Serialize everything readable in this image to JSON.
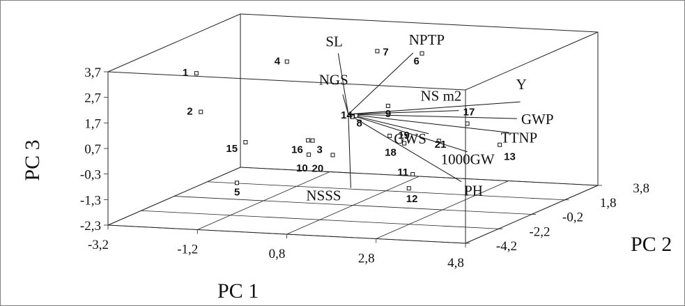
{
  "chart_data": {
    "type": "scatter",
    "subtype": "3d-biplot",
    "xlabel": "PC 1",
    "ylabel": "PC 2",
    "zlabel": "PC 3",
    "x_ticks": [
      "-3,2",
      "-1,2",
      "0,8",
      "2,8",
      "4,8"
    ],
    "y_ticks": [
      "-4,2",
      "-2,2",
      "-0,2",
      "1,8",
      "3,8"
    ],
    "z_ticks": [
      "-2,3",
      "-1,3",
      "-0,3",
      "0,7",
      "1,7",
      "2,7",
      "3,7"
    ],
    "xlim": [
      -3.2,
      4.8
    ],
    "ylim": [
      -4.2,
      3.8
    ],
    "zlim": [
      -2.3,
      3.7
    ],
    "grid": "floor",
    "points": [
      {
        "label": "1",
        "x": -3.0,
        "y": 0.6,
        "z": 2.3
      },
      {
        "label": "2",
        "x": -2.9,
        "y": 0.6,
        "z": 0.8
      },
      {
        "label": "3",
        "x": -0.4,
        "y": 0.6,
        "z": -0.1
      },
      {
        "label": "4",
        "x": -0.9,
        "y": 0.4,
        "z": 3.0
      },
      {
        "label": "5",
        "x": -1.5,
        "y": -1.0,
        "z": -1.4
      },
      {
        "label": "6",
        "x": 1.9,
        "y": 1.0,
        "z": 3.4
      },
      {
        "label": "7",
        "x": 0.9,
        "y": 1.0,
        "z": 3.4
      },
      {
        "label": "8",
        "x": 0.6,
        "y": 0.3,
        "z": 1.0
      },
      {
        "label": "9",
        "x": 1.4,
        "y": 0.3,
        "z": 1.5
      },
      {
        "label": "10",
        "x": -0.3,
        "y": 0.1,
        "z": -0.5
      },
      {
        "label": "11",
        "x": 2.1,
        "y": -0.1,
        "z": -1.0
      },
      {
        "label": "12",
        "x": 2.2,
        "y": -0.6,
        "z": -1.4
      },
      {
        "label": "13",
        "x": 3.9,
        "y": 0.3,
        "z": 0.2
      },
      {
        "label": "14",
        "x": 0.5,
        "y": 0.8,
        "z": 0.9
      },
      {
        "label": "15",
        "x": -1.9,
        "y": 0.6,
        "z": -0.3
      },
      {
        "label": "16",
        "x": -0.5,
        "y": 0.6,
        "z": -0.1
      },
      {
        "label": "17",
        "x": 3.1,
        "y": 0.5,
        "z": 0.9
      },
      {
        "label": "18",
        "x": 1.8,
        "y": 0.2,
        "z": 0.1
      },
      {
        "label": "19",
        "x": 1.4,
        "y": 0.4,
        "z": 0.3
      },
      {
        "label": "20",
        "x": 0.2,
        "y": 0.2,
        "z": -0.5
      },
      {
        "label": "21",
        "x": 2.5,
        "y": 0.4,
        "z": 0.2
      }
    ],
    "vectors": [
      {
        "label": "SL",
        "x": 0.1,
        "y": 0.8,
        "z": 3.3
      },
      {
        "label": "NPTP",
        "x": 1.7,
        "y": 1.0,
        "z": 3.4
      },
      {
        "label": "NGS",
        "x": 0.2,
        "y": 0.8,
        "z": 1.7
      },
      {
        "label": "NS m2",
        "x": 2.8,
        "y": 0.8,
        "z": 1.3
      },
      {
        "label": "Y",
        "x": 4.1,
        "y": 1.0,
        "z": 1.7
      },
      {
        "label": "GWP",
        "x": 4.1,
        "y": 0.8,
        "z": 1.1
      },
      {
        "label": "GWS",
        "x": 2.2,
        "y": 0.6,
        "z": 0.4
      },
      {
        "label": "TTNP",
        "x": 4.0,
        "y": 0.6,
        "z": 0.6
      },
      {
        "label": "1000GW",
        "x": 3.1,
        "y": 0.5,
        "z": -0.2
      },
      {
        "label": "PH",
        "x": 3.3,
        "y": -0.4,
        "z": -1.1
      },
      {
        "label": "NSSS",
        "x": 0.9,
        "y": -0.6,
        "z": -1.5
      }
    ]
  }
}
